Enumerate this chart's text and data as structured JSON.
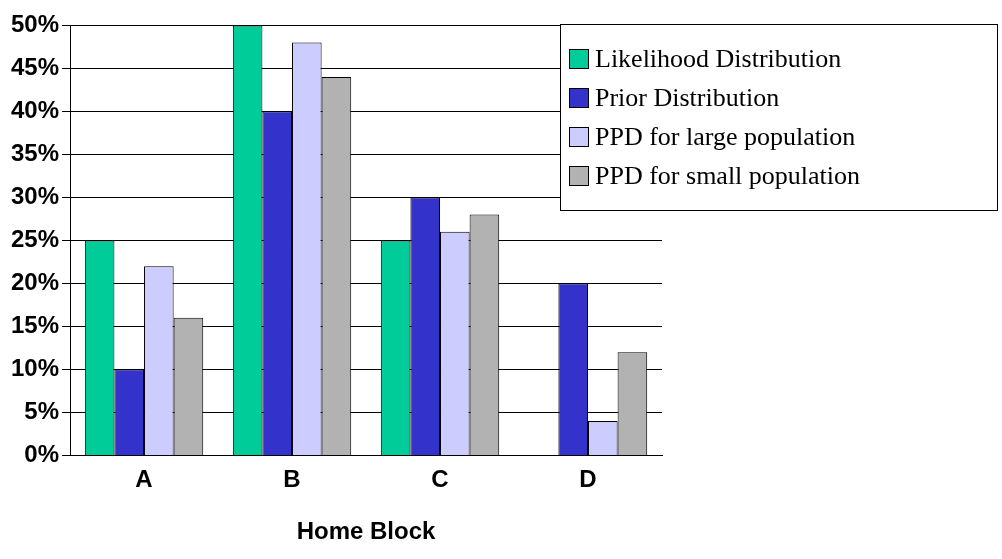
{
  "chart_data": {
    "type": "bar",
    "xlabel": "Home Block",
    "categories": [
      "A",
      "B",
      "C",
      "D"
    ],
    "series": [
      {
        "name": "Likelihood Distribution",
        "color": "#00cc99",
        "values": [
          25,
          50,
          25,
          0
        ]
      },
      {
        "name": "Prior Distribution",
        "color": "#3333cc",
        "values": [
          10,
          40,
          30,
          20
        ]
      },
      {
        "name": "PPD for large population",
        "color": "#ccccff",
        "values": [
          22,
          48,
          26,
          4
        ]
      },
      {
        "name": "PPD for small population",
        "color": "#b2b2b2",
        "values": [
          16,
          44,
          28,
          12
        ]
      }
    ],
    "ylim": [
      0,
      50
    ],
    "yticks": [
      {
        "value": 0,
        "label": "0%"
      },
      {
        "value": 5,
        "label": "5%"
      },
      {
        "value": 10,
        "label": "10%"
      },
      {
        "value": 15,
        "label": "15%"
      },
      {
        "value": 20,
        "label": "20%"
      },
      {
        "value": 25,
        "label": "25%"
      },
      {
        "value": 30,
        "label": "30%"
      },
      {
        "value": 35,
        "label": "35%"
      },
      {
        "value": 40,
        "label": "40%"
      },
      {
        "value": 45,
        "label": "45%"
      },
      {
        "value": 50,
        "label": "50%"
      }
    ],
    "grid": "y",
    "legend": "top right"
  }
}
